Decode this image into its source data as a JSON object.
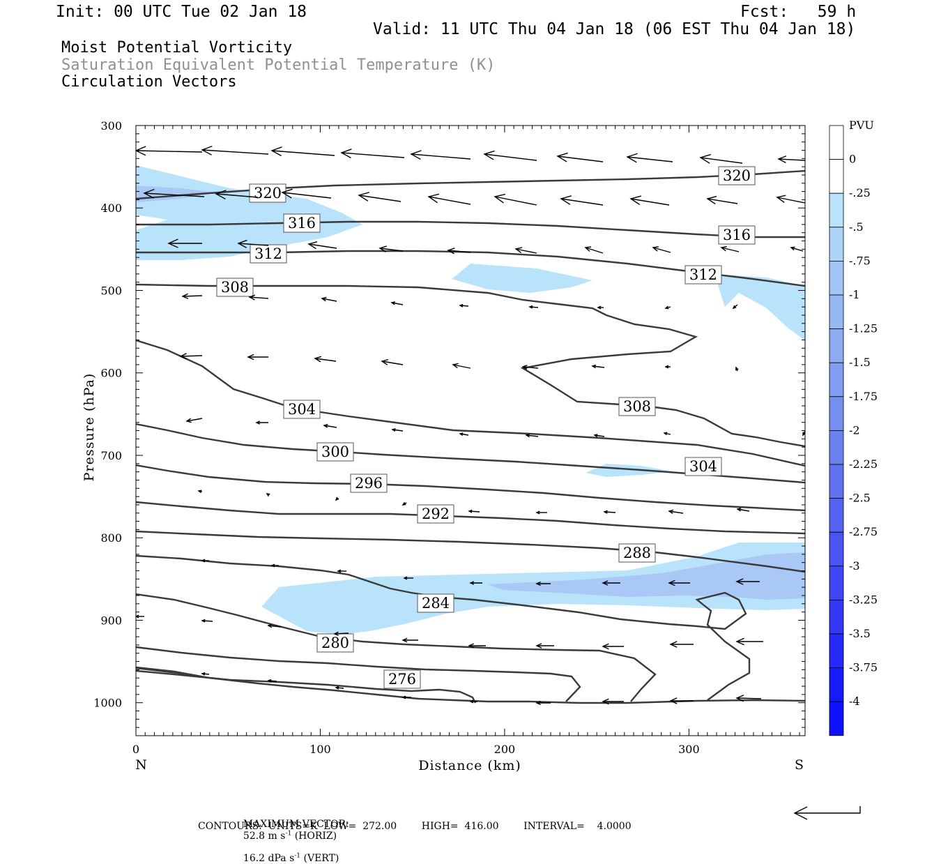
{
  "header": {
    "init": "Init: 00 UTC Tue 02 Jan 18",
    "fcst": "Fcst:   59 h",
    "valid": "Valid: 11 UTC Thu 04 Jan 18 (06 EST Thu 04 Jan 18)",
    "field1": "Moist Potential Vorticity",
    "field2": "Saturation Equivalent Potential Temperature (K)",
    "field3": "Circulation Vectors"
  },
  "colors": {
    "field2_text": "#909090",
    "contour": "#3a3a3a",
    "pv_shade_light": "#b9e3fb",
    "pv_shade_mid": "#a9c8f6"
  },
  "chart_data": {
    "type": "cross-section",
    "xlabel": "Distance (km)",
    "ylabel": "Pressure (hPa)",
    "xlim": [
      0,
      363
    ],
    "ylim": [
      1040,
      300
    ],
    "x_ticks": [
      0,
      100,
      200,
      300
    ],
    "y_ticks": [
      300,
      400,
      500,
      600,
      700,
      800,
      900,
      1000
    ],
    "x_end_labels": {
      "left": "N",
      "right": "S"
    },
    "contours": {
      "units": "K",
      "levels": [
        320,
        316,
        312,
        308,
        304,
        300,
        296,
        292,
        288,
        284,
        280,
        276
      ],
      "low": "272.00",
      "high": "416.00",
      "interval": "4.0000"
    },
    "colorbar": {
      "title": "PVU",
      "labels": [
        "0",
        "-.25",
        "-.5",
        "-.75",
        "-1",
        "-1.25",
        "-1.5",
        "-1.75",
        "-2",
        "-2.25",
        "-2.5",
        "-2.75",
        "-3",
        "-3.25",
        "-3.5",
        "-3.75",
        "-4"
      ]
    }
  },
  "footer": {
    "max_vector_label": "MAXIMUM VECTOR:",
    "horiz_value": "52.8 m s",
    "horiz_exp": "-1",
    "horiz_tag": "(HORIZ)",
    "vert_value": "16.2 dPa s",
    "vert_exp": "-1",
    "vert_tag": "(VERT)",
    "contours_line": "CONTOURS:  UNITS=K  LOW=  272.00        HIGH=  416.00        INTERVAL=    4.0000"
  }
}
